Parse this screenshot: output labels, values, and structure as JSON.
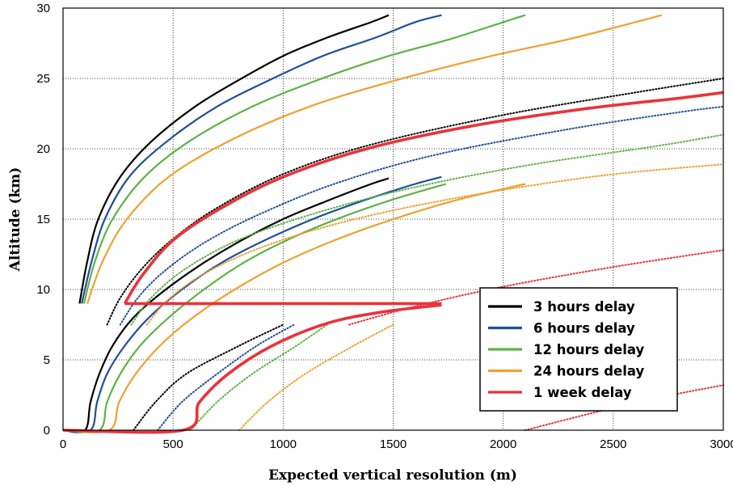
{
  "chart_data": {
    "type": "line",
    "xlabel": "Expected vertical resolution (m)",
    "ylabel": "Altitude (km)",
    "xlim": [
      0,
      3000
    ],
    "ylim": [
      0,
      30
    ],
    "xticks": [
      0,
      500,
      1000,
      1500,
      2000,
      2500,
      3000
    ],
    "yticks": [
      0,
      5,
      10,
      15,
      20,
      25,
      30
    ],
    "grid": true,
    "legend_position": "bottom-right",
    "series": [
      {
        "name": "3 hours delay",
        "color": "#000000",
        "solid": [
          {
            "x": [
              0,
              100,
              125,
              165,
              225,
              320,
              450,
              620,
              800,
              1000,
              1200,
              1400,
              1480
            ],
            "y": [
              0,
              0,
              2,
              4,
              6,
              8,
              9.8,
              11.7,
              13.4,
              15,
              16.3,
              17.5,
              17.9
            ]
          },
          {
            "x": [
              75,
              110,
              160,
              260,
              400,
              600,
              800,
              1000,
              1200,
              1400,
              1480
            ],
            "y": [
              9,
              12,
              15,
              18,
              20.5,
              23,
              24.9,
              26.6,
              27.9,
              29,
              29.5
            ]
          }
        ],
        "dotted": [
          {
            "x": [
              320,
              420,
              560,
              800,
              1000
            ],
            "y": [
              0,
              2,
              4,
              6,
              7.5
            ]
          },
          {
            "x": [
              200,
              260,
              360,
              500,
              700,
              1000,
              1400,
              2000,
              2600,
              3000
            ],
            "y": [
              7.5,
              9.4,
              11.5,
              13.6,
              15.8,
              18.2,
              20.3,
              22.4,
              24,
              25
            ]
          }
        ]
      },
      {
        "name": "6 hours delay",
        "color": "#1f4e9c",
        "solid": [
          {
            "x": [
              0,
              125,
              155,
              200,
              280,
              390,
              540,
              720,
              930,
              1150,
              1380,
              1600,
              1720
            ],
            "y": [
              0,
              0,
              2,
              4,
              6,
              8,
              10,
              11.9,
              13.6,
              15.1,
              16.4,
              17.5,
              18
            ]
          },
          {
            "x": [
              85,
              130,
              190,
              300,
              470,
              700,
              940,
              1180,
              1420,
              1600,
              1720
            ],
            "y": [
              9,
              12,
              15,
              18,
              20.5,
              23,
              24.9,
              26.6,
              27.9,
              29,
              29.5
            ]
          }
        ],
        "dotted": [
          {
            "x": [
              430,
              540,
              700,
              880,
              1050
            ],
            "y": [
              0,
              2,
              4,
              6,
              7.5
            ]
          },
          {
            "x": [
              260,
              340,
              460,
              650,
              900,
              1250,
              1700,
              2300,
              2800,
              3000
            ],
            "y": [
              7.5,
              9.4,
              11.3,
              13.4,
              15.4,
              17.6,
              19.6,
              21.4,
              22.6,
              23
            ]
          }
        ]
      },
      {
        "name": "12 hours delay",
        "color": "#5db345",
        "solid": [
          {
            "x": [
              0,
              165,
              200,
              260,
              350,
              480,
              640,
              820,
              1030,
              1260,
              1500,
              1740
            ],
            "y": [
              0,
              0,
              2,
              4,
              6,
              8,
              10,
              11.9,
              13.6,
              15.1,
              16.4,
              17.5
            ]
          },
          {
            "x": [
              95,
              145,
              225,
              370,
              580,
              860,
              1160,
              1460,
              1760,
              2000,
              2100
            ],
            "y": [
              9,
              12,
              15,
              18,
              20.6,
              23,
              24.9,
              26.5,
              27.8,
              29,
              29.5
            ]
          }
        ],
        "dotted": [
          {
            "x": [
              580,
              700,
              860,
              1060,
              1200
            ],
            "y": [
              0,
              2,
              4,
              6,
              7.5
            ]
          },
          {
            "x": [
              310,
              400,
              550,
              780,
              1100,
              1550,
              2100,
              2700,
              3000
            ],
            "y": [
              7.5,
              9.4,
              11.4,
              13.4,
              15.2,
              17.1,
              18.8,
              20.2,
              21
            ]
          }
        ]
      },
      {
        "name": "24 hours delay",
        "color": "#f0a030",
        "solid": [
          {
            "x": [
              0,
              210,
              255,
              330,
              440,
              590,
              780,
              1000,
              1250,
              1520,
              1800,
              2100
            ],
            "y": [
              0,
              0,
              2,
              4,
              6,
              8,
              10,
              11.9,
              13.6,
              15.1,
              16.4,
              17.5
            ]
          },
          {
            "x": [
              110,
              180,
              290,
              480,
              760,
              1120,
              1520,
              1920,
              2300,
              2600,
              2720
            ],
            "y": [
              9,
              12,
              15,
              18,
              20.6,
              23,
              24.9,
              26.5,
              27.8,
              29,
              29.5
            ]
          }
        ],
        "dotted": [
          {
            "x": [
              800,
              930,
              1100,
              1320,
              1500
            ],
            "y": [
              0,
              2,
              4,
              6,
              7.5
            ]
          },
          {
            "x": [
              380,
              480,
              650,
              920,
              1300,
              1820,
              2450,
              3000
            ],
            "y": [
              7.5,
              9.3,
              11.2,
              13.1,
              14.9,
              16.6,
              18.1,
              18.9
            ]
          }
        ]
      },
      {
        "name": "1 week delay",
        "color": "#e8333a",
        "solid": [
          {
            "x": [
              0,
              545,
              620,
              750,
              950,
              1200,
              1450,
              1720
            ],
            "y": [
              0,
              0,
              2,
              4,
              6,
              7.6,
              8.4,
              8.9
            ]
          },
          {
            "x": [
              280,
              1720
            ],
            "y": [
              9,
              9
            ]
          },
          {
            "x": [
              280,
              360,
              500,
              720,
              1000,
              1380,
              1850,
              2350,
              2800,
              3000
            ],
            "y": [
              9,
              11,
              13.5,
              15.8,
              18,
              20,
              21.6,
              22.8,
              23.6,
              24
            ]
          }
        ],
        "dotted": [
          {
            "x": [
              2100,
              2400,
              2700,
              3000
            ],
            "y": [
              0,
              1.2,
              2.3,
              3.2
            ]
          },
          {
            "x": [
              1300,
              1600,
              2000,
              2500,
              3000
            ],
            "y": [
              7.5,
              8.8,
              10.2,
              11.6,
              12.8
            ]
          }
        ]
      }
    ]
  }
}
